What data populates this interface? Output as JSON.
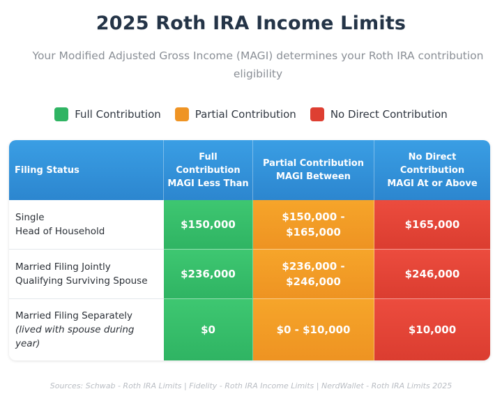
{
  "title": "2025 Roth IRA Income Limits",
  "subtitle": "Your Modified Adjusted Gross Income (MAGI) determines your Roth IRA contribution eligibility",
  "legend": [
    {
      "label": "Full Contribution",
      "color": "#2fb463"
    },
    {
      "label": "Partial Contribution",
      "color": "#ef9424"
    },
    {
      "label": "No Direct Contribution",
      "color": "#de3f32"
    }
  ],
  "table": {
    "headers": {
      "status": "Filing Status",
      "full": [
        "Full",
        "Contribution",
        "MAGI Less Than"
      ],
      "partial": [
        "Partial Contribution",
        "MAGI Between"
      ],
      "none": [
        "No Direct",
        "Contribution",
        "MAGI At or Above"
      ]
    },
    "rows": [
      {
        "status": [
          "Single",
          "Head of Household"
        ],
        "note": "",
        "full": "$150,000",
        "partial": [
          "$150,000 -",
          "$165,000"
        ],
        "none": "$165,000"
      },
      {
        "status": [
          "Married Filing Jointly",
          "Qualifying Surviving Spouse"
        ],
        "note": "",
        "full": "$236,000",
        "partial": [
          "$236,000 -",
          "$246,000"
        ],
        "none": "$246,000"
      },
      {
        "status": [
          "Married Filing Separately"
        ],
        "note": [
          "(lived with spouse during",
          "year)"
        ],
        "full": "$0",
        "partial": [
          "$0 - $10,000"
        ],
        "none": "$10,000"
      }
    ]
  },
  "sources": "Sources: Schwab - Roth IRA Limits | Fidelity - Roth IRA Income Limits | NerdWallet - Roth IRA Limits 2025"
}
